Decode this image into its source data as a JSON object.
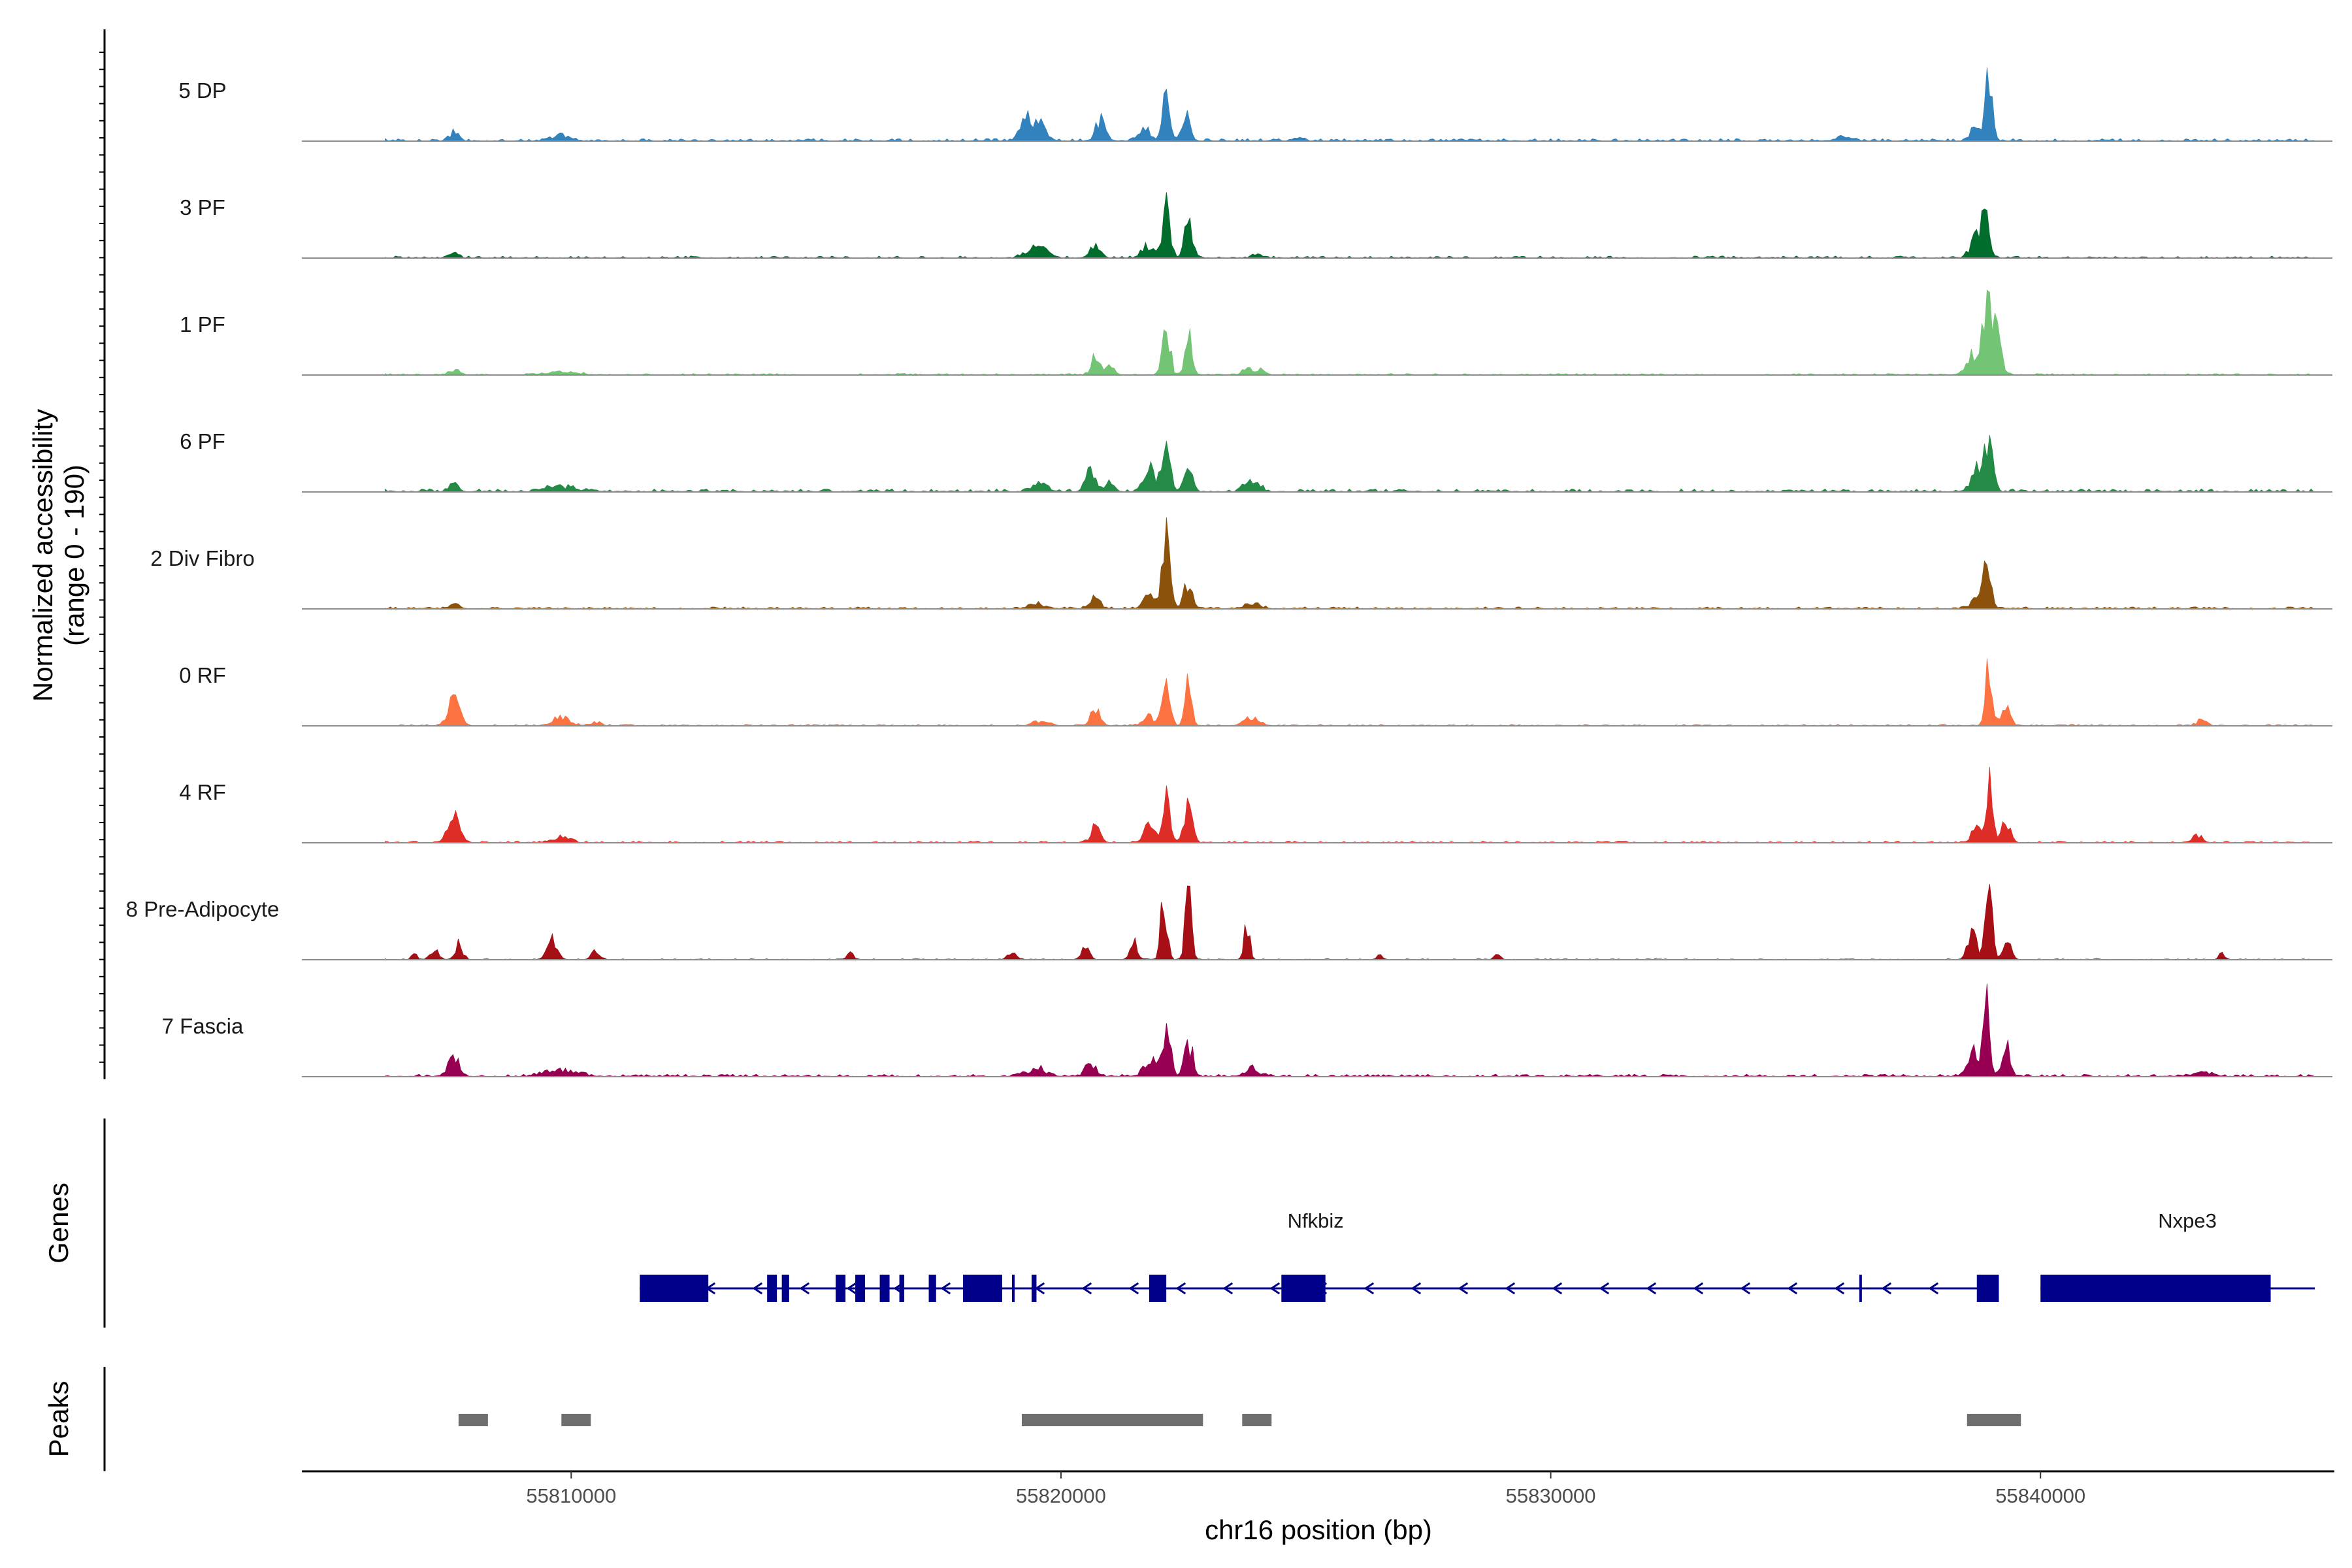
{
  "chart_data": {
    "type": "area",
    "title": "",
    "xlabel": "chr16 position (bp)",
    "ylabel_line1": "Normalized accessibility",
    "ylabel_line2": "(range 0 - 190)",
    "y_range": [
      0,
      190
    ],
    "chromosome": "chr16",
    "x_range": [
      55804500,
      55846000
    ],
    "x_ticks": [
      {
        "value": 55810000,
        "label": "55810000"
      },
      {
        "value": 55820000,
        "label": "55820000"
      },
      {
        "value": 55830000,
        "label": "55830000"
      },
      {
        "value": 55840000,
        "label": "55840000"
      }
    ],
    "tracks": [
      {
        "name": "5 DP",
        "color": "#3182bd",
        "peaks": [
          [
            55807600,
            15,
            90
          ],
          [
            55809800,
            10,
            150
          ],
          [
            55819300,
            45,
            120
          ],
          [
            55819600,
            30,
            100
          ],
          [
            55820800,
            40,
            90
          ],
          [
            55821700,
            22,
            120
          ],
          [
            55822150,
            100,
            70
          ],
          [
            55822550,
            60,
            80
          ],
          [
            55838950,
            110,
            70
          ],
          [
            55838700,
            30,
            120
          ],
          [
            55836000,
            8,
            150
          ],
          [
            55824900,
            6,
            80
          ]
        ],
        "noise": 5
      },
      {
        "name": "3 PF",
        "color": "#006d2c",
        "peaks": [
          [
            55807600,
            8,
            100
          ],
          [
            55819500,
            20,
            200
          ],
          [
            55820700,
            28,
            100
          ],
          [
            55821800,
            25,
            130
          ],
          [
            55822150,
            95,
            80
          ],
          [
            55822600,
            70,
            80
          ],
          [
            55838900,
            100,
            70
          ],
          [
            55838700,
            40,
            120
          ],
          [
            55824000,
            6,
            100
          ]
        ],
        "noise": 4
      },
      {
        "name": "1 PF",
        "color": "#74c476",
        "peaks": [
          [
            55807600,
            10,
            100
          ],
          [
            55809800,
            6,
            300
          ],
          [
            55820700,
            40,
            80
          ],
          [
            55821000,
            20,
            80
          ],
          [
            55822150,
            110,
            70
          ],
          [
            55822600,
            75,
            70
          ],
          [
            55823800,
            15,
            80
          ],
          [
            55824100,
            12,
            80
          ],
          [
            55838900,
            125,
            90
          ],
          [
            55839100,
            70,
            100
          ],
          [
            55838600,
            40,
            120
          ]
        ],
        "noise": 3
      },
      {
        "name": "6 PF",
        "color": "#238b45",
        "peaks": [
          [
            55807600,
            15,
            100
          ],
          [
            55809800,
            10,
            300
          ],
          [
            55819600,
            15,
            150
          ],
          [
            55820600,
            40,
            100
          ],
          [
            55821000,
            20,
            80
          ],
          [
            55821800,
            45,
            120
          ],
          [
            55822150,
            90,
            80
          ],
          [
            55822600,
            65,
            80
          ],
          [
            55823900,
            20,
            150
          ],
          [
            55838950,
            100,
            80
          ],
          [
            55838700,
            40,
            120
          ]
        ],
        "noise": 6
      },
      {
        "name": "2 Div Fibro",
        "color": "#8c510a",
        "peaks": [
          [
            55807600,
            8,
            100
          ],
          [
            55819500,
            10,
            150
          ],
          [
            55820700,
            22,
            100
          ],
          [
            55821800,
            25,
            120
          ],
          [
            55822150,
            125,
            80
          ],
          [
            55822600,
            55,
            80
          ],
          [
            55823900,
            10,
            150
          ],
          [
            55838900,
            85,
            80
          ],
          [
            55838700,
            20,
            120
          ]
        ],
        "noise": 4
      },
      {
        "name": "0 RF",
        "color": "#fc7240",
        "peaks": [
          [
            55807600,
            45,
            120
          ],
          [
            55809800,
            15,
            180
          ],
          [
            55810500,
            8,
            100
          ],
          [
            55819600,
            10,
            150
          ],
          [
            55820700,
            35,
            90
          ],
          [
            55821800,
            20,
            120
          ],
          [
            55822150,
            110,
            70
          ],
          [
            55822600,
            75,
            70
          ],
          [
            55823900,
            15,
            150
          ],
          [
            55838950,
            120,
            70
          ],
          [
            55839300,
            40,
            80
          ],
          [
            55843300,
            12,
            100
          ]
        ],
        "noise": 3
      },
      {
        "name": "4 RF",
        "color": "#de2d26",
        "peaks": [
          [
            55807600,
            45,
            120
          ],
          [
            55809800,
            10,
            180
          ],
          [
            55820700,
            28,
            90
          ],
          [
            55821800,
            30,
            110
          ],
          [
            55822150,
            95,
            80
          ],
          [
            55822600,
            70,
            80
          ],
          [
            55838950,
            110,
            70
          ],
          [
            55839300,
            45,
            80
          ],
          [
            55838700,
            35,
            100
          ],
          [
            55843200,
            15,
            100
          ]
        ],
        "noise": 3
      },
      {
        "name": "8 Pre-Adipocyte",
        "color": "#a50f15",
        "peaks": [
          [
            55806800,
            10,
            60
          ],
          [
            55807200,
            20,
            80
          ],
          [
            55807700,
            30,
            80
          ],
          [
            55809600,
            40,
            100
          ],
          [
            55810500,
            15,
            80
          ],
          [
            55815700,
            12,
            60
          ],
          [
            55819000,
            12,
            80
          ],
          [
            55820500,
            22,
            80
          ],
          [
            55821500,
            30,
            80
          ],
          [
            55822100,
            135,
            60
          ],
          [
            55822600,
            130,
            60
          ],
          [
            55823800,
            65,
            60
          ],
          [
            55826500,
            10,
            60
          ],
          [
            55828900,
            12,
            60
          ],
          [
            55838950,
            130,
            70
          ],
          [
            55838600,
            60,
            80
          ],
          [
            55839300,
            40,
            80
          ],
          [
            55843700,
            12,
            60
          ]
        ],
        "noise": 2
      },
      {
        "name": "7 Fascia",
        "color": "#970052",
        "peaks": [
          [
            55807600,
            35,
            120
          ],
          [
            55809800,
            12,
            300
          ],
          [
            55819500,
            15,
            200
          ],
          [
            55820600,
            25,
            100
          ],
          [
            55821800,
            30,
            120
          ],
          [
            55822150,
            110,
            80
          ],
          [
            55822600,
            70,
            80
          ],
          [
            55823900,
            15,
            150
          ],
          [
            55838900,
            130,
            70
          ],
          [
            55839300,
            60,
            80
          ],
          [
            55838600,
            50,
            100
          ],
          [
            55843300,
            8,
            150
          ]
        ],
        "noise": 5
      }
    ],
    "genes_panel_title": "Genes",
    "genes": [
      {
        "name": "Nfkbiz",
        "strand": "-",
        "start": 55811400,
        "end": 55838900,
        "color": "#00008b",
        "exons": [
          [
            55811400,
            55812800
          ],
          [
            55814000,
            55814200
          ],
          [
            55814300,
            55814450
          ],
          [
            55815400,
            55815600
          ],
          [
            55815800,
            55816000
          ],
          [
            55816300,
            55816500
          ],
          [
            55816700,
            55816800
          ],
          [
            55817300,
            55817450
          ],
          [
            55818000,
            55818800
          ],
          [
            55819000,
            55819050
          ],
          [
            55819400,
            55819500
          ],
          [
            55821800,
            55822150
          ],
          [
            55824500,
            55825400
          ],
          [
            55836300,
            55836350
          ],
          [
            55838700,
            55839150
          ]
        ]
      },
      {
        "name": "Nxpe3",
        "strand": "-",
        "start": 55840000,
        "end": 55845600,
        "color": "#00008b",
        "exons": [
          [
            55840000,
            55844700
          ]
        ]
      }
    ],
    "peaks_panel_title": "Peaks",
    "peaks_color": "#6e6e6e",
    "peaks_regions": [
      [
        55807700,
        55808300
      ],
      [
        55809800,
        55810400
      ],
      [
        55819200,
        55822900
      ],
      [
        55823700,
        55824300
      ],
      [
        55838500,
        55839600
      ]
    ]
  }
}
